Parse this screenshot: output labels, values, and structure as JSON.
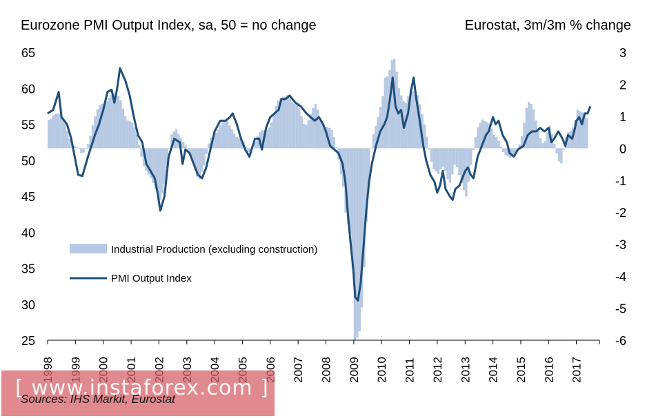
{
  "chart_data": {
    "type": "bar+line",
    "title_left": "Eurozone PMI Output Index, sa, 50 = no change",
    "title_right": "Eurostat, 3m/3m % change",
    "left_axis": {
      "ylim": [
        25,
        65
      ],
      "ticks": [
        "65",
        "60",
        "55",
        "50",
        "45",
        "40",
        "35",
        "30",
        "25"
      ]
    },
    "right_axis": {
      "ylim": [
        -6,
        3
      ],
      "ticks": [
        "3",
        "2",
        "1",
        "0",
        "-1",
        "-2",
        "-3",
        "-4",
        "-5",
        "-6"
      ]
    },
    "x_categories": [
      "1998",
      "1999",
      "2000",
      "2001",
      "2002",
      "2003",
      "2004",
      "2005",
      "2006",
      "2007",
      "2008",
      "2009",
      "2010",
      "2011",
      "2012",
      "2013",
      "2014",
      "2015",
      "2016",
      "2017"
    ],
    "legend": [
      {
        "name": "Industrial Production (excluding construction)",
        "color": "#b7c9e3",
        "kind": "bar"
      },
      {
        "name": "PMI Output Index",
        "color": "#1f4e79",
        "kind": "line"
      }
    ],
    "series_pmi_anchors": [
      [
        1998.0,
        56.5
      ],
      [
        1998.2,
        57.0
      ],
      [
        1998.4,
        59.5
      ],
      [
        1998.5,
        56.0
      ],
      [
        1998.7,
        55.0
      ],
      [
        1998.85,
        53.0
      ],
      [
        1999.0,
        50.0
      ],
      [
        1999.1,
        48.0
      ],
      [
        1999.25,
        47.8
      ],
      [
        1999.45,
        50.5
      ],
      [
        1999.7,
        53.5
      ],
      [
        1999.85,
        55.0
      ],
      [
        2000.0,
        57.0
      ],
      [
        2000.15,
        59.5
      ],
      [
        2000.3,
        59.8
      ],
      [
        2000.4,
        58.0
      ],
      [
        2000.5,
        60.0
      ],
      [
        2000.6,
        62.8
      ],
      [
        2000.8,
        61.0
      ],
      [
        2000.95,
        59.0
      ],
      [
        2001.1,
        56.0
      ],
      [
        2001.25,
        53.5
      ],
      [
        2001.4,
        52.5
      ],
      [
        2001.55,
        49.5
      ],
      [
        2001.7,
        48.5
      ],
      [
        2001.85,
        47.5
      ],
      [
        2001.95,
        45.5
      ],
      [
        2002.05,
        43.0
      ],
      [
        2002.2,
        45.0
      ],
      [
        2002.35,
        50.5
      ],
      [
        2002.55,
        53.0
      ],
      [
        2002.75,
        52.5
      ],
      [
        2002.85,
        49.5
      ],
      [
        2002.95,
        51.5
      ],
      [
        2003.1,
        51.0
      ],
      [
        2003.25,
        49.5
      ],
      [
        2003.4,
        48.0
      ],
      [
        2003.55,
        47.5
      ],
      [
        2003.7,
        49.0
      ],
      [
        2003.85,
        51.5
      ],
      [
        2004.0,
        54.0
      ],
      [
        2004.2,
        55.5
      ],
      [
        2004.4,
        55.5
      ],
      [
        2004.55,
        56.0
      ],
      [
        2004.65,
        56.5
      ],
      [
        2004.8,
        55.0
      ],
      [
        2004.95,
        53.0
      ],
      [
        2005.1,
        51.5
      ],
      [
        2005.25,
        50.5
      ],
      [
        2005.45,
        53.0
      ],
      [
        2005.6,
        53.0
      ],
      [
        2005.7,
        51.5
      ],
      [
        2005.85,
        54.5
      ],
      [
        2006.0,
        56.0
      ],
      [
        2006.15,
        56.5
      ],
      [
        2006.3,
        57.0
      ],
      [
        2006.4,
        58.5
      ],
      [
        2006.55,
        58.5
      ],
      [
        2006.7,
        59.0
      ],
      [
        2006.9,
        58.0
      ],
      [
        2007.1,
        57.5
      ],
      [
        2007.3,
        56.5
      ],
      [
        2007.45,
        56.0
      ],
      [
        2007.6,
        55.5
      ],
      [
        2007.75,
        56.0
      ],
      [
        2007.9,
        55.0
      ],
      [
        2008.0,
        54.0
      ],
      [
        2008.15,
        52.0
      ],
      [
        2008.3,
        51.5
      ],
      [
        2008.45,
        51.0
      ],
      [
        2008.6,
        49.5
      ],
      [
        2008.7,
        47.0
      ],
      [
        2008.8,
        42.0
      ],
      [
        2008.9,
        38.0
      ],
      [
        2008.98,
        35.0
      ],
      [
        2009.05,
        31.0
      ],
      [
        2009.15,
        30.5
      ],
      [
        2009.25,
        33.0
      ],
      [
        2009.35,
        38.0
      ],
      [
        2009.45,
        43.0
      ],
      [
        2009.55,
        47.0
      ],
      [
        2009.65,
        49.5
      ],
      [
        2009.8,
        52.0
      ],
      [
        2009.95,
        54.0
      ],
      [
        2010.1,
        55.0
      ],
      [
        2010.2,
        56.0
      ],
      [
        2010.3,
        58.5
      ],
      [
        2010.4,
        61.5
      ],
      [
        2010.5,
        57.5
      ],
      [
        2010.6,
        56.5
      ],
      [
        2010.7,
        57.0
      ],
      [
        2010.8,
        54.5
      ],
      [
        2010.95,
        56.5
      ],
      [
        2011.05,
        59.5
      ],
      [
        2011.15,
        61.5
      ],
      [
        2011.25,
        58.5
      ],
      [
        2011.35,
        56.0
      ],
      [
        2011.5,
        52.0
      ],
      [
        2011.6,
        50.0
      ],
      [
        2011.75,
        48.0
      ],
      [
        2011.9,
        47.0
      ],
      [
        2012.0,
        45.5
      ],
      [
        2012.1,
        46.5
      ],
      [
        2012.2,
        48.5
      ],
      [
        2012.3,
        46.0
      ],
      [
        2012.45,
        45.0
      ],
      [
        2012.55,
        44.5
      ],
      [
        2012.65,
        46.0
      ],
      [
        2012.8,
        46.5
      ],
      [
        2012.9,
        47.5
      ],
      [
        2013.0,
        48.5
      ],
      [
        2013.1,
        49.0
      ],
      [
        2013.2,
        48.0
      ],
      [
        2013.3,
        47.5
      ],
      [
        2013.45,
        50.5
      ],
      [
        2013.6,
        52.0
      ],
      [
        2013.75,
        53.5
      ],
      [
        2013.85,
        54.0
      ],
      [
        2014.0,
        56.0
      ],
      [
        2014.1,
        55.0
      ],
      [
        2014.2,
        55.5
      ],
      [
        2014.35,
        53.5
      ],
      [
        2014.5,
        52.5
      ],
      [
        2014.6,
        51.0
      ],
      [
        2014.75,
        50.5
      ],
      [
        2014.9,
        51.5
      ],
      [
        2015.1,
        52.0
      ],
      [
        2015.25,
        53.5
      ],
      [
        2015.4,
        54.0
      ],
      [
        2015.55,
        54.0
      ],
      [
        2015.7,
        54.5
      ],
      [
        2015.85,
        54.0
      ],
      [
        2016.0,
        54.5
      ],
      [
        2016.1,
        52.5
      ],
      [
        2016.2,
        53.0
      ],
      [
        2016.35,
        54.0
      ],
      [
        2016.5,
        53.0
      ],
      [
        2016.6,
        52.0
      ],
      [
        2016.7,
        53.5
      ],
      [
        2016.85,
        53.0
      ],
      [
        2016.95,
        54.5
      ],
      [
        2017.0,
        55.5
      ],
      [
        2017.1,
        56.0
      ],
      [
        2017.2,
        55.0
      ],
      [
        2017.3,
        56.5
      ],
      [
        2017.4,
        56.5
      ],
      [
        2017.5,
        57.5
      ]
    ],
    "series_ip_anchors": [
      [
        1998.0,
        0.9
      ],
      [
        1998.2,
        1.2
      ],
      [
        1998.4,
        1.0
      ],
      [
        1998.6,
        0.7
      ],
      [
        1998.8,
        0.3
      ],
      [
        1999.0,
        0.0
      ],
      [
        1999.2,
        -0.3
      ],
      [
        1999.4,
        0.2
      ],
      [
        1999.6,
        0.8
      ],
      [
        1999.8,
        1.2
      ],
      [
        2000.0,
        1.5
      ],
      [
        2000.2,
        1.7
      ],
      [
        2000.4,
        1.6
      ],
      [
        2000.6,
        1.5
      ],
      [
        2000.8,
        1.0
      ],
      [
        2001.0,
        0.7
      ],
      [
        2001.2,
        0.3
      ],
      [
        2001.4,
        -0.4
      ],
      [
        2001.6,
        -0.9
      ],
      [
        2001.8,
        -1.3
      ],
      [
        2002.0,
        -1.5
      ],
      [
        2002.2,
        -1.0
      ],
      [
        2002.4,
        0.3
      ],
      [
        2002.6,
        0.7
      ],
      [
        2002.8,
        0.3
      ],
      [
        2003.0,
        -0.2
      ],
      [
        2003.2,
        -0.5
      ],
      [
        2003.4,
        -0.9
      ],
      [
        2003.6,
        -0.6
      ],
      [
        2003.8,
        0.3
      ],
      [
        2004.0,
        0.6
      ],
      [
        2004.2,
        0.7
      ],
      [
        2004.4,
        0.8
      ],
      [
        2004.6,
        0.7
      ],
      [
        2004.8,
        0.3
      ],
      [
        2005.0,
        0.1
      ],
      [
        2005.2,
        -0.1
      ],
      [
        2005.4,
        0.2
      ],
      [
        2005.6,
        0.4
      ],
      [
        2005.8,
        0.6
      ],
      [
        2006.0,
        0.9
      ],
      [
        2006.2,
        1.3
      ],
      [
        2006.4,
        1.6
      ],
      [
        2006.6,
        1.8
      ],
      [
        2006.8,
        1.3
      ],
      [
        2007.0,
        1.2
      ],
      [
        2007.2,
        0.8
      ],
      [
        2007.4,
        1.0
      ],
      [
        2007.6,
        1.3
      ],
      [
        2007.8,
        0.9
      ],
      [
        2008.0,
        0.7
      ],
      [
        2008.2,
        0.4
      ],
      [
        2008.4,
        -0.2
      ],
      [
        2008.6,
        -1.2
      ],
      [
        2008.7,
        -2.4
      ],
      [
        2008.8,
        -2.5
      ],
      [
        2008.9,
        -3.4
      ],
      [
        2009.0,
        -6.0
      ],
      [
        2009.1,
        -5.8
      ],
      [
        2009.2,
        -5.5
      ],
      [
        2009.3,
        -4.3
      ],
      [
        2009.4,
        -2.6
      ],
      [
        2009.5,
        -1.3
      ],
      [
        2009.6,
        0.2
      ],
      [
        2009.8,
        1.0
      ],
      [
        2010.0,
        1.6
      ],
      [
        2010.1,
        2.2
      ],
      [
        2010.2,
        2.1
      ],
      [
        2010.3,
        2.7
      ],
      [
        2010.4,
        3.0
      ],
      [
        2010.5,
        2.5
      ],
      [
        2010.6,
        1.8
      ],
      [
        2010.8,
        1.2
      ],
      [
        2011.0,
        1.9
      ],
      [
        2011.2,
        1.9
      ],
      [
        2011.4,
        1.0
      ],
      [
        2011.6,
        0.3
      ],
      [
        2011.8,
        -0.5
      ],
      [
        2012.0,
        -0.9
      ],
      [
        2012.2,
        -0.6
      ],
      [
        2012.4,
        -1.0
      ],
      [
        2012.6,
        -0.5
      ],
      [
        2012.8,
        -1.1
      ],
      [
        2013.0,
        -1.4
      ],
      [
        2013.2,
        -0.3
      ],
      [
        2013.4,
        0.5
      ],
      [
        2013.6,
        1.0
      ],
      [
        2013.8,
        0.9
      ],
      [
        2014.0,
        0.3
      ],
      [
        2014.2,
        0.2
      ],
      [
        2014.4,
        -0.1
      ],
      [
        2014.6,
        -0.4
      ],
      [
        2014.8,
        -0.2
      ],
      [
        2015.0,
        0.5
      ],
      [
        2015.2,
        1.4
      ],
      [
        2015.4,
        1.2
      ],
      [
        2015.6,
        0.6
      ],
      [
        2015.8,
        0.1
      ],
      [
        2016.0,
        0.6
      ],
      [
        2016.2,
        0.1
      ],
      [
        2016.4,
        -0.5
      ],
      [
        2016.6,
        0.3
      ],
      [
        2016.8,
        0.6
      ],
      [
        2017.0,
        1.3
      ],
      [
        2017.2,
        1.0
      ],
      [
        2017.4,
        0.8
      ]
    ]
  },
  "legend_labels": {
    "ip": "Industrial Production (excluding construction)",
    "pmi": "PMI Output Index"
  },
  "source_text": "Sources: IHS Markit, Eurostat",
  "watermark_text": "[ www.instaforex.com ]",
  "colors": {
    "bar": "#b7c9e3",
    "line": "#1f4e79",
    "axis": "#000000"
  }
}
